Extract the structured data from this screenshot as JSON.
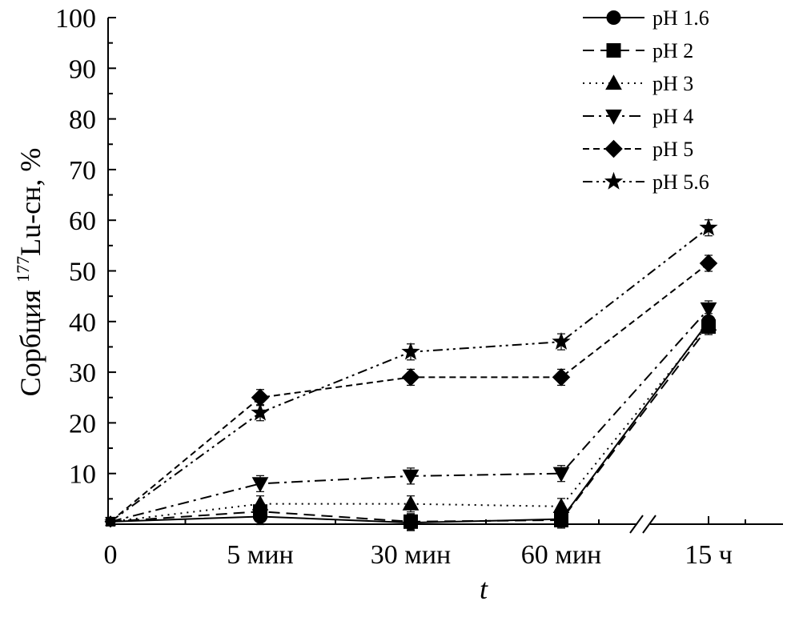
{
  "chart_data": {
    "type": "line",
    "title": "",
    "xlabel": "t",
    "ylabel_prefix": "Сорбция ",
    "ylabel_sup": "177",
    "ylabel_main": "Lu-сн, %",
    "categories": [
      "0",
      "5 мин",
      "30 мин",
      "60 мин",
      "15 ч"
    ],
    "x_break_between": [
      "60 мин",
      "15 ч"
    ],
    "ylim": [
      0,
      100
    ],
    "yticks": [
      10,
      20,
      30,
      40,
      50,
      60,
      70,
      80,
      90,
      100
    ],
    "y_tick_labels": [
      "10",
      "20",
      "30",
      "40",
      "50",
      "60",
      "70",
      "80",
      "90",
      "100"
    ],
    "grid": false,
    "legend_position": "top-right",
    "series": [
      {
        "name": "pH 1.6",
        "marker": "circle",
        "dash": "solid",
        "values": [
          0.5,
          1.5,
          0.3,
          1.0,
          40
        ]
      },
      {
        "name": "pH 2",
        "marker": "square",
        "dash": "dashed",
        "values": [
          0.5,
          2.5,
          0.5,
          0.8,
          39
        ]
      },
      {
        "name": "pH 3",
        "marker": "triangle-up",
        "dash": "dotted",
        "values": [
          0.5,
          4.0,
          4.0,
          3.5,
          39.5
        ]
      },
      {
        "name": "pH 4",
        "marker": "triangle-down",
        "dash": "dash-dot",
        "values": [
          0.5,
          8.0,
          9.5,
          10.0,
          42.5
        ]
      },
      {
        "name": "pH 5",
        "marker": "diamond",
        "dash": "short-dash",
        "values": [
          0.5,
          25.0,
          29.0,
          29.0,
          51.5
        ]
      },
      {
        "name": "pH 5.6",
        "marker": "star",
        "dash": "dash-dot-dot",
        "values": [
          0.5,
          22.0,
          34.0,
          36.0,
          58.5
        ]
      }
    ]
  }
}
